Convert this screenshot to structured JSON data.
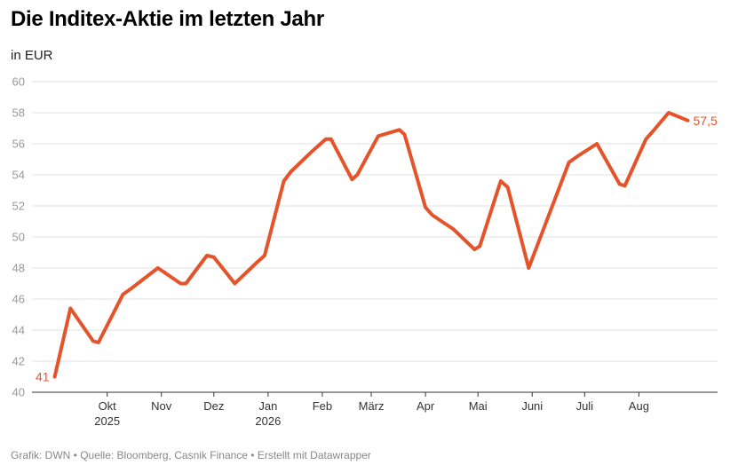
{
  "title": "Die Inditex-Aktie im letzten Jahr",
  "subtitle": "in EUR",
  "footer": "Grafik: DWN • Quelle: Bloomberg, Casnik Finance • Erstellt mit Datawrapper",
  "colors": {
    "line": "#e4532a",
    "grid": "#e2e2e2",
    "axis": "#333333"
  },
  "chart_data": {
    "type": "line",
    "title": "Die Inditex-Aktie im letzten Jahr",
    "ylabel": "in EUR",
    "ylim": [
      40,
      60
    ],
    "yticks": [
      40,
      42,
      44,
      46,
      48,
      50,
      52,
      54,
      56,
      58,
      60
    ],
    "grid": true,
    "xlim": [
      "2025-08-19",
      "2026-09-15"
    ],
    "xticks": [
      {
        "date": "2025-10-01",
        "label": "Okt",
        "label2": "2025"
      },
      {
        "date": "2025-11-01",
        "label": "Nov",
        "label2": ""
      },
      {
        "date": "2025-12-01",
        "label": "Dez",
        "label2": ""
      },
      {
        "date": "2026-01-01",
        "label": "Jan",
        "label2": "2026"
      },
      {
        "date": "2026-02-01",
        "label": "Feb",
        "label2": ""
      },
      {
        "date": "2026-03-01",
        "label": "März",
        "label2": ""
      },
      {
        "date": "2026-04-01",
        "label": "Apr",
        "label2": ""
      },
      {
        "date": "2026-05-01",
        "label": "Mai",
        "label2": ""
      },
      {
        "date": "2026-06-01",
        "label": "Juni",
        "label2": ""
      },
      {
        "date": "2026-07-01",
        "label": "Juli",
        "label2": ""
      },
      {
        "date": "2026-08-01",
        "label": "Aug",
        "label2": ""
      }
    ],
    "start_label": "41",
    "end_label": "57,5",
    "series": [
      {
        "color": "#e4532a",
        "x": [
          "2025-09-01",
          "2025-09-10",
          "2025-09-23",
          "2025-09-26",
          "2025-10-10",
          "2025-10-15",
          "2025-10-30",
          "2025-11-12",
          "2025-11-15",
          "2025-11-27",
          "2025-12-01",
          "2025-12-13",
          "2025-12-25",
          "2025-12-30",
          "2026-01-10",
          "2026-01-14",
          "2026-01-26",
          "2026-02-03",
          "2026-02-06",
          "2026-02-18",
          "2026-02-21",
          "2026-03-05",
          "2026-03-17",
          "2026-03-20",
          "2026-04-01",
          "2026-04-05",
          "2026-04-17",
          "2026-04-29",
          "2026-05-02",
          "2026-05-14",
          "2026-05-18",
          "2026-05-30",
          "2026-06-22",
          "2026-06-27",
          "2026-07-08",
          "2026-07-21",
          "2026-07-24",
          "2026-08-05",
          "2026-08-09",
          "2026-08-18",
          "2026-08-29"
        ],
        "y": [
          41.0,
          45.4,
          43.3,
          43.2,
          46.3,
          46.7,
          48.0,
          47.0,
          47.0,
          48.8,
          48.7,
          47.0,
          48.3,
          48.8,
          53.6,
          54.2,
          55.5,
          56.3,
          56.3,
          53.7,
          54.0,
          56.5,
          56.9,
          56.6,
          51.9,
          51.4,
          50.5,
          49.2,
          49.4,
          53.6,
          53.2,
          48.0,
          54.8,
          55.2,
          56.0,
          53.4,
          53.3,
          56.3,
          56.8,
          58.0,
          57.5
        ]
      }
    ]
  }
}
